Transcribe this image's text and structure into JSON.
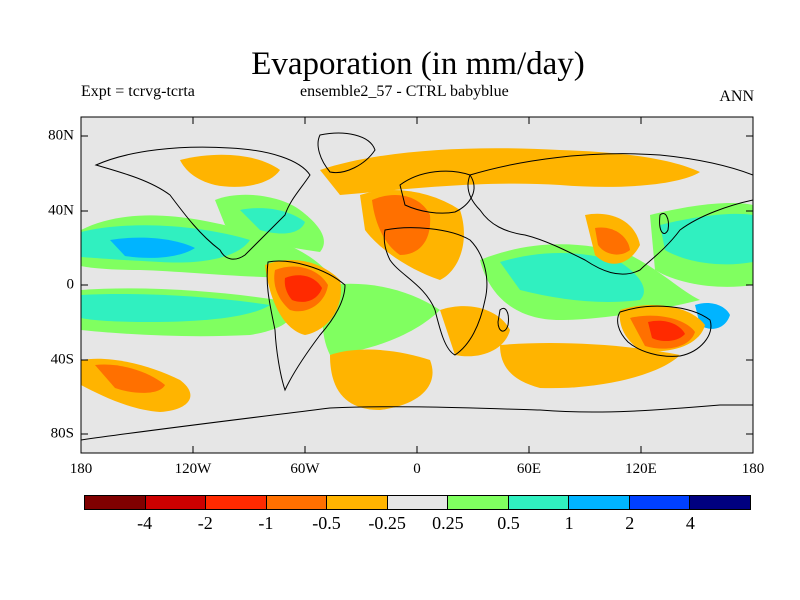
{
  "title": "Evaporation (in mm/day)",
  "subtitle_left": "Expt = tcrvg-tcrta",
  "subtitle_center": "ensemble2_57 - CTRL babyblue",
  "subtitle_right": "ANN",
  "lon_ticks": [
    "180",
    "120W",
    "60W",
    "0",
    "60E",
    "120E",
    "180"
  ],
  "lat_ticks": [
    "80N",
    "40N",
    "0",
    "40S",
    "80S"
  ],
  "colorbar": {
    "colors": [
      "#800000",
      "#cc0000",
      "#ff2a00",
      "#ff7000",
      "#ffb400",
      "#e6e6e6",
      "#80ff60",
      "#30f0c0",
      "#00b4ff",
      "#0040ff",
      "#000080"
    ],
    "labels": [
      "-4",
      "-2",
      "-1",
      "-0.5",
      "-0.25",
      "0.25",
      "0.5",
      "1",
      "2",
      "4"
    ]
  },
  "fill_colors": {
    "background": "#e6e6e6",
    "orange": "#ffb400",
    "dark_orange": "#ff7000",
    "red": "#ff2a00",
    "green": "#80ff60",
    "turquoise": "#30f0c0",
    "blue": "#00b4ff"
  }
}
